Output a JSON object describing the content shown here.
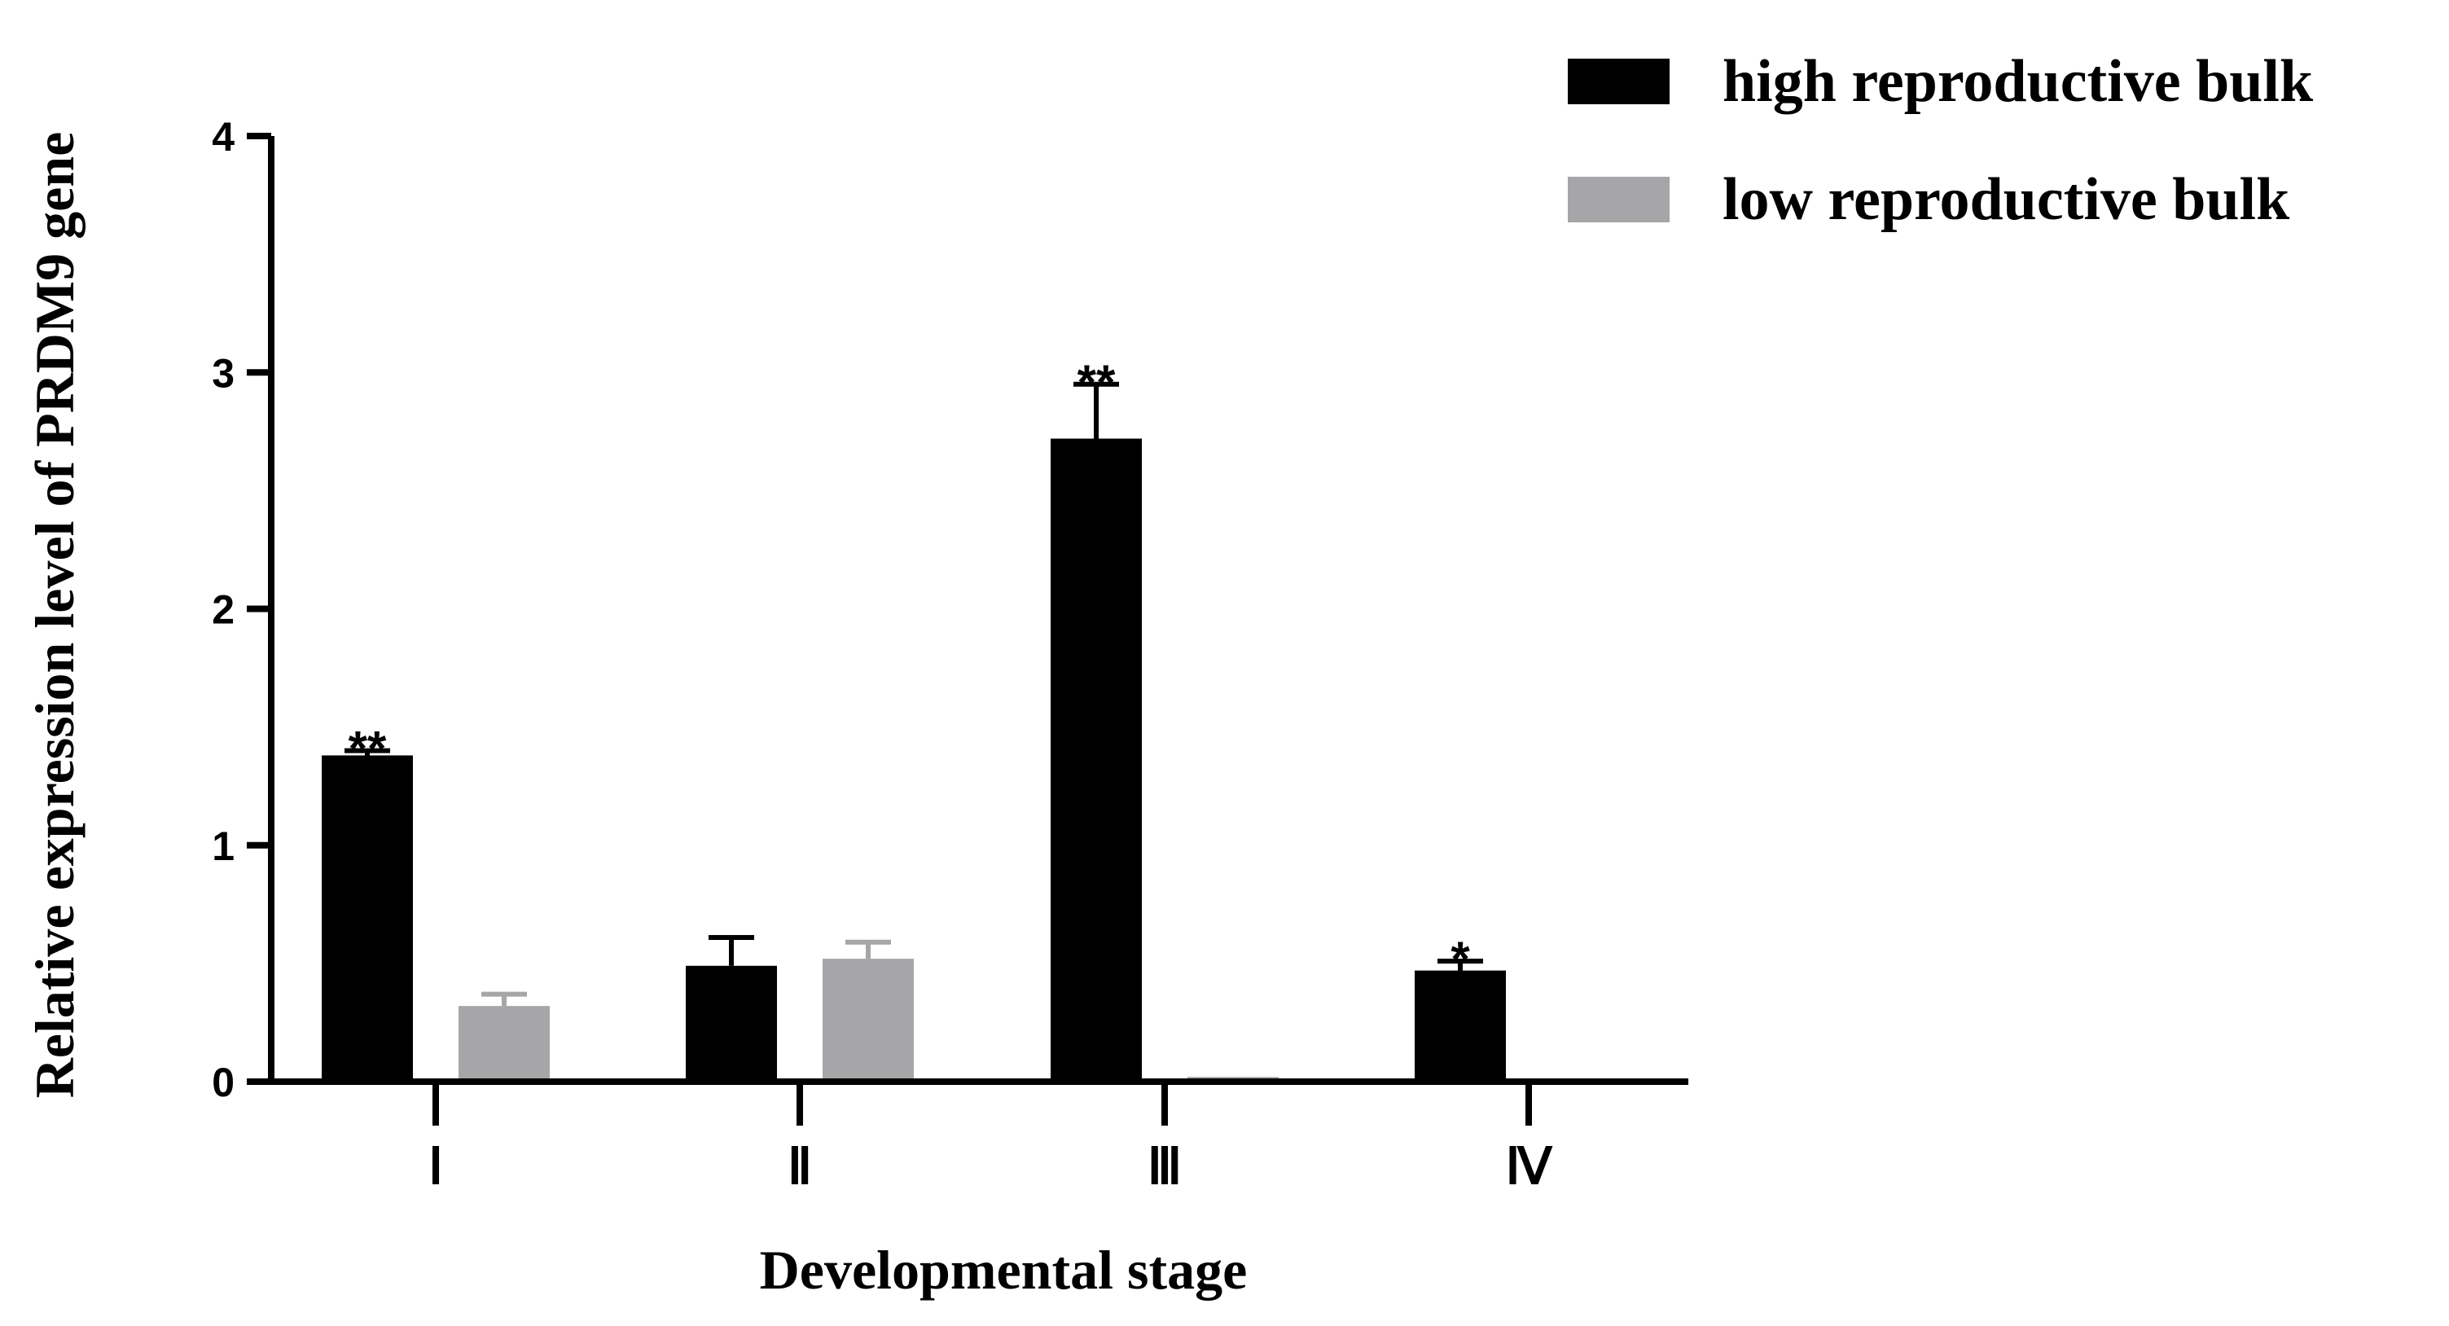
{
  "chart_data": {
    "type": "bar",
    "title": "",
    "xlabel": "Developmental stage",
    "ylabel": "Relative expression level of PRDM9  gene",
    "ylim": [
      0,
      4
    ],
    "yticks": [
      "0",
      "1",
      "2",
      "3",
      "4"
    ],
    "categories": [
      "Ⅰ",
      "Ⅱ",
      "Ⅲ",
      "Ⅳ"
    ],
    "legend_position": "top-right",
    "series": [
      {
        "name": "high reproductive bulk",
        "color": "#000000",
        "values": [
          1.38,
          0.49,
          2.72,
          0.47
        ],
        "errors": [
          0.02,
          0.12,
          0.23,
          0.04
        ],
        "significance": [
          "**",
          "",
          "**",
          "*"
        ]
      },
      {
        "name": "low reproductive bulk",
        "color": "#a6a6a8",
        "values": [
          0.32,
          0.52,
          0.02,
          0.0
        ],
        "errors": [
          0.05,
          0.07,
          0.0,
          0.0
        ],
        "significance": [
          "",
          "",
          "",
          ""
        ]
      }
    ]
  }
}
